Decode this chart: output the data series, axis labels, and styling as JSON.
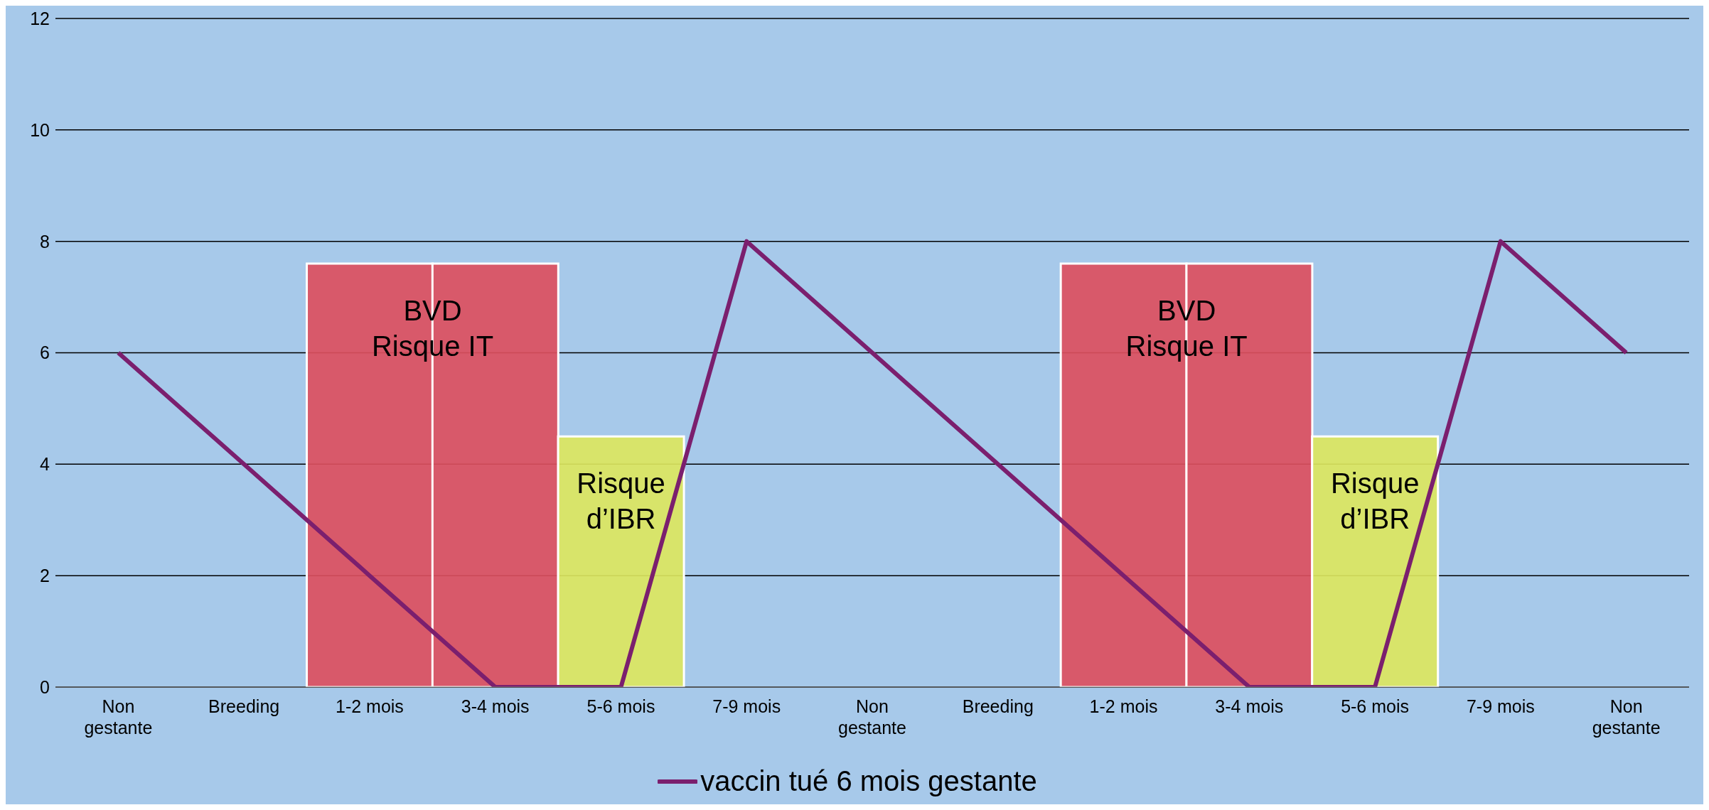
{
  "chart_data": {
    "type": "line",
    "categories": [
      "Non gestante",
      "Breeding",
      "1-2 mois",
      "3-4 mois",
      "5-6 mois",
      "7-9 mois",
      "Non gestante",
      "Breeding",
      "1-2 mois",
      "3-4 mois",
      "5-6 mois",
      "7-9 mois",
      "Non gestante"
    ],
    "series": [
      {
        "name": "vaccin tué 6 mois gestante",
        "color": "#7b1f6e",
        "values": [
          6,
          4,
          2,
          0,
          0,
          8,
          6,
          4,
          2,
          0,
          0,
          8,
          6
        ]
      },
      {
        "type": "bar",
        "color": "#dc4f5e",
        "values": [
          null,
          null,
          7.6,
          7.6,
          null,
          null,
          null,
          null,
          7.6,
          7.6,
          null,
          null,
          null
        ],
        "value_labels": [
          null,
          null,
          "BVD\nRisque IT",
          null,
          null,
          null,
          null,
          null,
          "BVD\nRisque IT",
          null,
          null,
          null,
          null
        ]
      },
      {
        "type": "bar",
        "color": "#dce65e",
        "values": [
          null,
          null,
          null,
          null,
          4.5,
          null,
          null,
          null,
          null,
          null,
          4.5,
          null,
          null
        ],
        "value_labels": [
          null,
          null,
          null,
          null,
          "Risque\nd’IBR",
          null,
          null,
          null,
          null,
          null,
          "Risque\nd’IBR",
          null,
          null
        ]
      }
    ],
    "ylim": [
      0,
      12
    ],
    "yticks": [
      0,
      2,
      4,
      6,
      8,
      10,
      12
    ],
    "grid": "y",
    "legend": "bottom",
    "marker": "none",
    "line_style": "solid"
  }
}
